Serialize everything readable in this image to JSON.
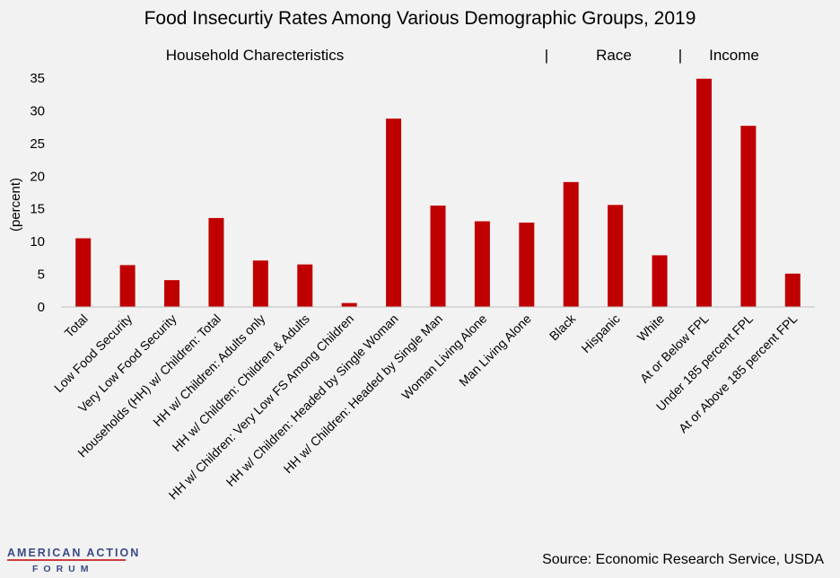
{
  "chart_data": {
    "type": "bar",
    "title": "Food Insecurtiy Rates Among Various Demographic Groups, 2019",
    "ylabel": "(percent)",
    "ylim": [
      0,
      35
    ],
    "yticks": [
      "0",
      "5",
      "10",
      "15",
      "20",
      "25",
      "30",
      "35"
    ],
    "groups": [
      {
        "label": "Household Charecteristics"
      },
      {
        "label": "Race"
      },
      {
        "label": "Income"
      }
    ],
    "separator": "|",
    "categories": [
      "Total",
      "Low Food Security",
      "Very Low Food Security",
      "Households (HH) w/ Children: Total",
      "HH w/ Children: Adults only",
      "HH w/ Children: Children & Adults",
      "HH w/ Children: Very Low FS Among Children",
      "HH w/ Children: Headed by Single Woman",
      "HH w/ Children: Headed by Single Man",
      "Woman Living Alone",
      "Man Living Alone",
      "Black",
      "Hispanic",
      "White",
      "At or Below FPL",
      "Under 185 percent FPL",
      "At or Above 185 percent FPL"
    ],
    "values": [
      10.5,
      6.4,
      4.1,
      13.6,
      7.1,
      6.5,
      0.6,
      28.8,
      15.5,
      13.1,
      12.9,
      19.1,
      15.6,
      7.9,
      34.9,
      27.7,
      5.1
    ],
    "bar_color": "#c00000",
    "grid": false,
    "legend": "none"
  },
  "source": "Source: Economic Research Service, USDA",
  "logo": {
    "top": "AMERICAN ACTION",
    "bottom": "FORUM"
  }
}
